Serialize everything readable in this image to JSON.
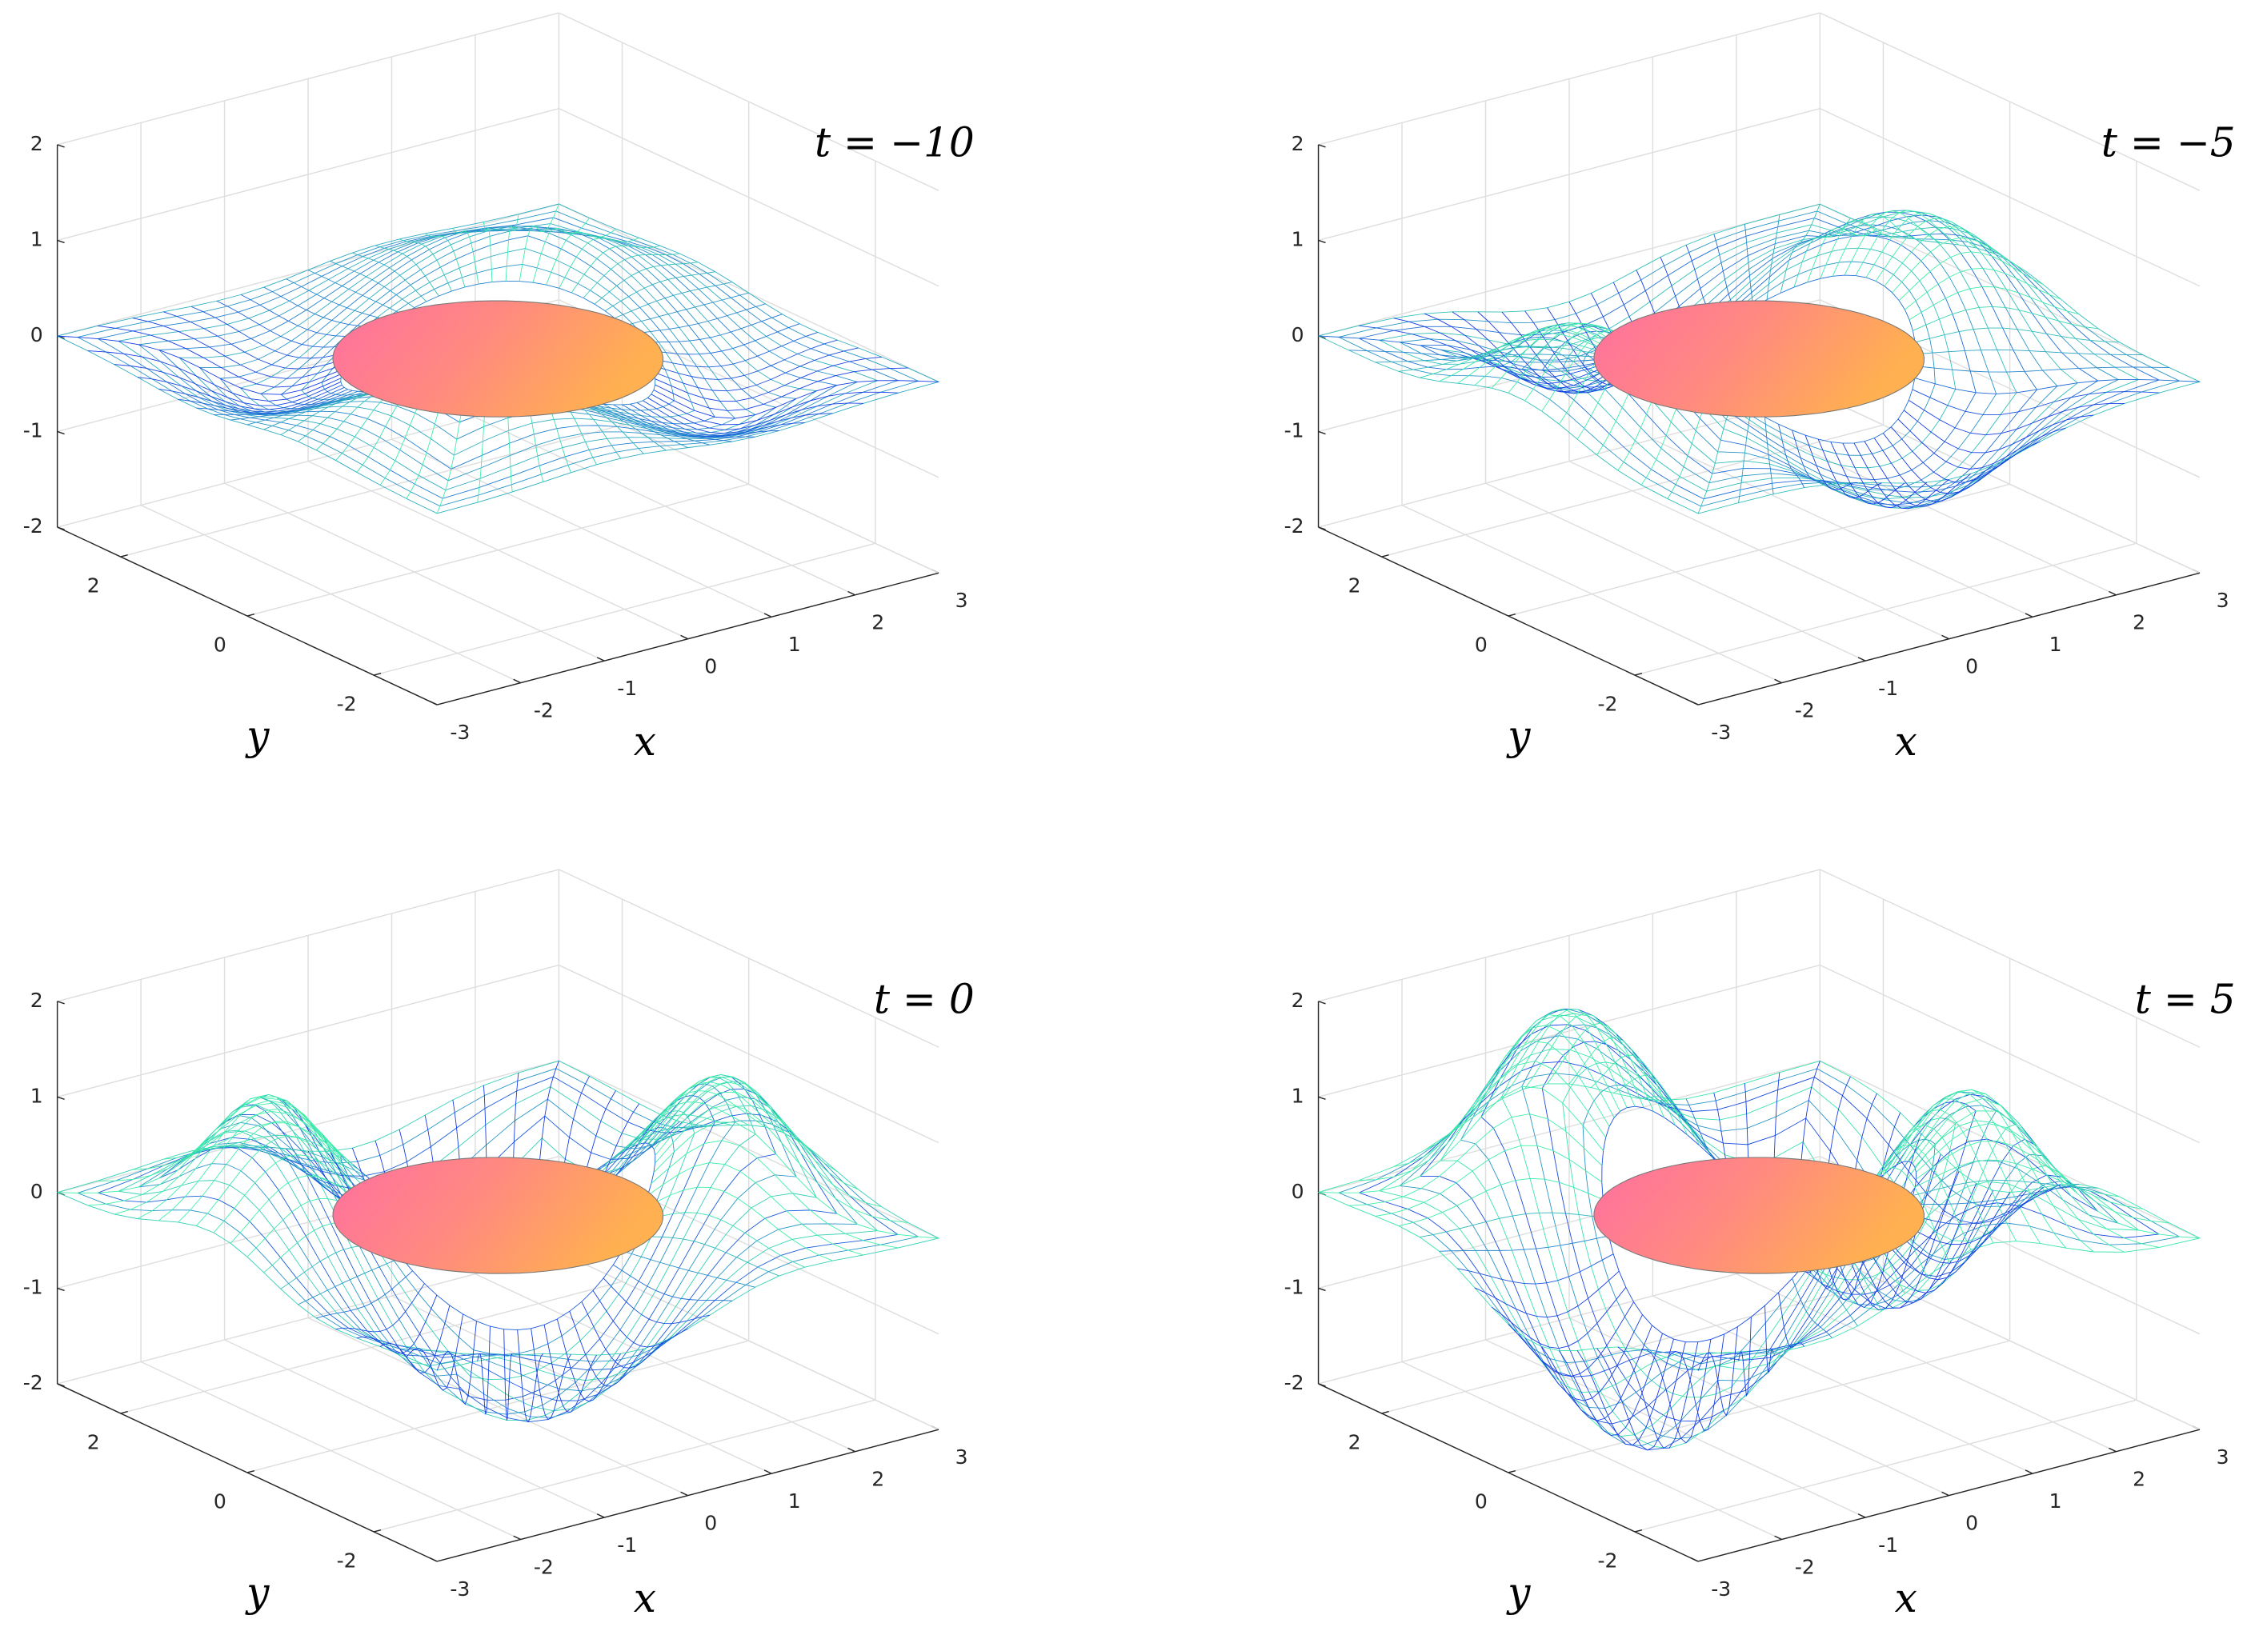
{
  "chart_data": [
    {
      "type": "surface",
      "title": "t = −10",
      "xlabel": "x",
      "ylabel": "y",
      "xlim": [
        -3,
        3
      ],
      "ylim": [
        -3,
        3
      ],
      "zlim": [
        -2,
        2
      ],
      "xticks": [
        -3,
        -2,
        -1,
        0,
        1,
        2,
        3
      ],
      "yticks": [
        -2,
        0,
        2
      ],
      "zticks": [
        -2,
        -1,
        0,
        1,
        2
      ],
      "grid": true
    },
    {
      "type": "surface",
      "title": "t = −5",
      "xlabel": "x",
      "ylabel": "y",
      "xlim": [
        -3,
        3
      ],
      "ylim": [
        -3,
        3
      ],
      "zlim": [
        -2,
        2
      ],
      "xticks": [
        -3,
        -2,
        -1,
        0,
        1,
        2,
        3
      ],
      "yticks": [
        -2,
        0,
        2
      ],
      "zticks": [
        -2,
        -1,
        0,
        1,
        2
      ],
      "grid": true
    },
    {
      "type": "surface",
      "title": "t = 0",
      "xlabel": "x",
      "ylabel": "y",
      "xlim": [
        -3,
        3
      ],
      "ylim": [
        -3,
        3
      ],
      "zlim": [
        -2,
        2
      ],
      "xticks": [
        -3,
        -2,
        -1,
        0,
        1,
        2,
        3
      ],
      "yticks": [
        -2,
        0,
        2
      ],
      "zticks": [
        -2,
        -1,
        0,
        1,
        2
      ],
      "grid": true
    },
    {
      "type": "surface",
      "title": "t = 5",
      "xlabel": "x",
      "ylabel": "y",
      "xlim": [
        -3,
        3
      ],
      "ylim": [
        -3,
        3
      ],
      "zlim": [
        -2,
        2
      ],
      "xticks": [
        -3,
        -2,
        -1,
        0,
        1,
        2,
        3
      ],
      "yticks": [
        -2,
        0,
        2
      ],
      "zticks": [
        -2,
        -1,
        0,
        1,
        2
      ],
      "grid": true
    }
  ]
}
